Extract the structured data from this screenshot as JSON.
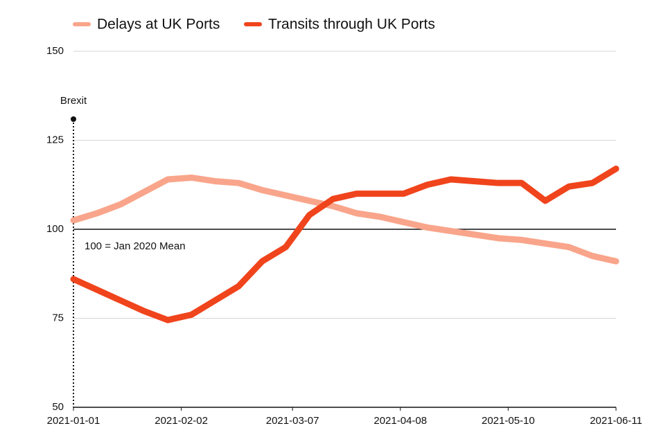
{
  "chart_data": {
    "type": "line",
    "x": [
      "2021-01-01",
      "2021-01-08",
      "2021-01-15",
      "2021-01-22",
      "2021-01-29",
      "2021-02-05",
      "2021-02-12",
      "2021-02-19",
      "2021-02-26",
      "2021-03-05",
      "2021-03-12",
      "2021-03-19",
      "2021-03-26",
      "2021-04-02",
      "2021-04-09",
      "2021-04-16",
      "2021-04-23",
      "2021-04-30",
      "2021-05-07",
      "2021-05-14",
      "2021-05-21",
      "2021-05-28",
      "2021-06-04",
      "2021-06-11"
    ],
    "series": [
      {
        "name": "Delays at UK Ports",
        "color": "#f9a58b",
        "values": [
          102.5,
          104.5,
          107,
          110.5,
          114,
          114.5,
          113.5,
          113,
          111,
          109.5,
          108,
          106.5,
          104.5,
          103.5,
          102,
          100.5,
          99.5,
          98.5,
          97.5,
          97,
          96,
          95,
          92.5,
          91
        ]
      },
      {
        "name": "Transits through UK Ports",
        "color": "#f0441c",
        "values": [
          86,
          83,
          80,
          77,
          74.5,
          76,
          80,
          84,
          91,
          95,
          104,
          108.5,
          110,
          110,
          110,
          112.5,
          114,
          113.5,
          113,
          113,
          108,
          112,
          113,
          117
        ]
      }
    ],
    "xlim": [
      "2021-01-01",
      "2021-06-11"
    ],
    "xticks": [
      "2021-01-01",
      "2021-02-02",
      "2021-03-07",
      "2021-04-08",
      "2021-05-10",
      "2021-06-11"
    ],
    "ylim": [
      50,
      150
    ],
    "yticks": [
      50,
      75,
      100,
      125,
      150
    ],
    "grid": true,
    "reference_line": {
      "value": 100,
      "label": "100 = Jan 2020 Mean"
    },
    "event": {
      "x": "2021-01-01",
      "label": "Brexit"
    },
    "legend": "top"
  }
}
